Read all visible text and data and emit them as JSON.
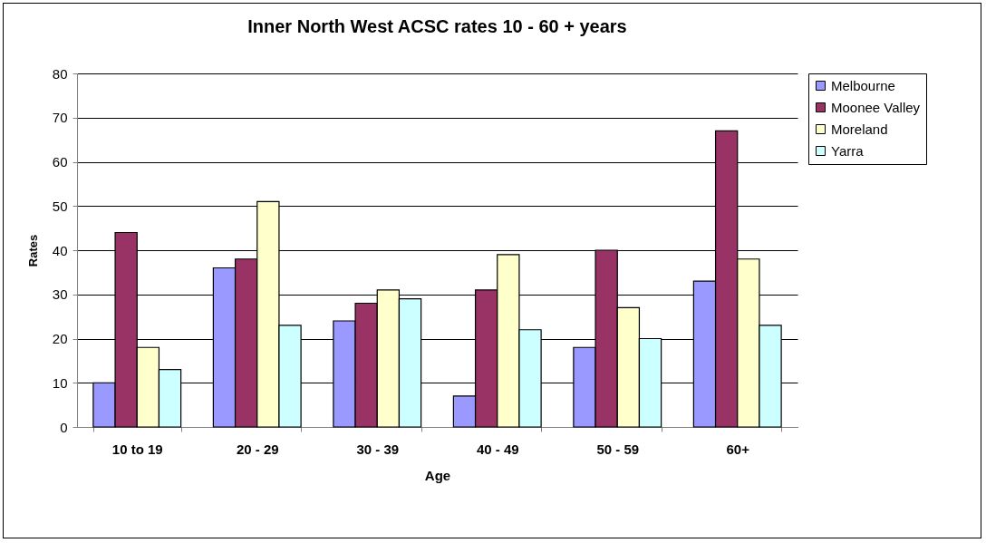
{
  "chart_data": {
    "type": "bar",
    "title": "Inner North West ACSC rates 10 - 60 + years",
    "xlabel": "Age",
    "ylabel": "Rates",
    "categories": [
      "10 to 19",
      "20 - 29",
      "30 - 39",
      "40 - 49",
      "50 - 59",
      "60+"
    ],
    "series": [
      {
        "name": "Melbourne",
        "color": "#9999ff",
        "values": [
          10,
          36,
          24,
          7,
          18,
          33
        ]
      },
      {
        "name": "Moonee Valley",
        "color": "#993366",
        "values": [
          44,
          38,
          28,
          31,
          40,
          67
        ]
      },
      {
        "name": "Moreland",
        "color": "#ffffcc",
        "values": [
          18,
          51,
          31,
          39,
          27,
          38
        ]
      },
      {
        "name": "Yarra",
        "color": "#ccffff",
        "values": [
          13,
          23,
          29,
          22,
          20,
          23
        ]
      }
    ],
    "ylim": [
      0,
      80
    ],
    "yticks": [
      0,
      10,
      20,
      30,
      40,
      50,
      60,
      70,
      80
    ],
    "grid": "y",
    "legend": "right"
  }
}
